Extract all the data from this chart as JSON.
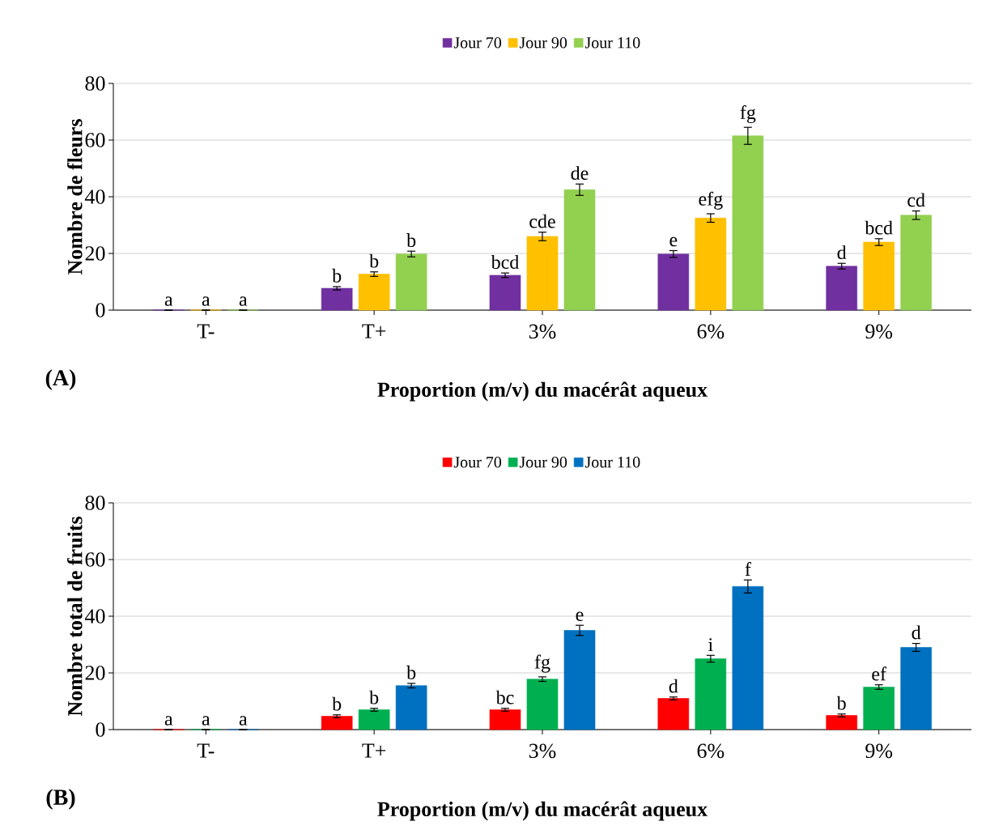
{
  "chart_data": [
    {
      "type": "bar",
      "xlabel": "Proportion (m/v) du macérât aqueux",
      "ylabel": "Nombre de fleurs",
      "categories": [
        "T-",
        "T+",
        "3%",
        "6%",
        "9%"
      ],
      "ylim": [
        0,
        80
      ],
      "yticks": [
        0,
        20,
        40,
        60,
        80
      ],
      "grid": "y",
      "legend": "top",
      "annotations": [
        "(A)"
      ],
      "series": [
        {
          "name": "Jour 70",
          "color": "#7030a0",
          "values": [
            0,
            7.7,
            12.3,
            19.8,
            15.5
          ],
          "errors": [
            null,
            0.6,
            0.8,
            1.2,
            1.0
          ],
          "value_labels": [
            "a",
            "b",
            "bcd",
            "e",
            "d"
          ]
        },
        {
          "name": "Jour 90",
          "color": "#ffc000",
          "values": [
            0,
            12.7,
            26,
            32.5,
            24
          ],
          "errors": [
            null,
            0.8,
            1.5,
            1.5,
            1.2
          ],
          "value_labels": [
            "a",
            "b",
            "cde",
            "efg",
            "bcd"
          ]
        },
        {
          "name": "Jour 110",
          "color": "#92d050",
          "values": [
            0,
            19.8,
            42.5,
            61.5,
            33.5
          ],
          "errors": [
            null,
            1.0,
            2.0,
            3.0,
            1.5
          ],
          "value_labels": [
            "a",
            "b",
            "de",
            "fg",
            "cd"
          ]
        }
      ]
    },
    {
      "type": "bar",
      "xlabel": "Proportion (m/v) du macérât aqueux",
      "ylabel": "Nombre total de fruits",
      "categories": [
        "T-",
        "T+",
        "3%",
        "6%",
        "9%"
      ],
      "ylim": [
        0,
        80
      ],
      "yticks": [
        0,
        20,
        40,
        60,
        80
      ],
      "grid": "y",
      "legend": "top",
      "annotations": [
        "(B)"
      ],
      "series": [
        {
          "name": "Jour 70",
          "color": "#ff0000",
          "values": [
            0,
            4.7,
            7,
            11,
            5
          ],
          "errors": [
            null,
            0.5,
            0.5,
            0.5,
            0.5
          ],
          "value_labels": [
            "a",
            "b",
            "bc",
            "d",
            "b"
          ]
        },
        {
          "name": "Jour 90",
          "color": "#00b050",
          "values": [
            0,
            7,
            17.8,
            25,
            15
          ],
          "errors": [
            null,
            0.5,
            0.8,
            1.2,
            0.8
          ],
          "value_labels": [
            "a",
            "b",
            "fg",
            "i",
            "ef"
          ]
        },
        {
          "name": "Jour 110",
          "color": "#0070c0",
          "values": [
            0,
            15.5,
            35,
            50.5,
            29
          ],
          "errors": [
            null,
            0.8,
            1.8,
            2.3,
            1.4
          ],
          "value_labels": [
            "a",
            "b",
            "e",
            "f",
            "d"
          ]
        }
      ]
    }
  ]
}
